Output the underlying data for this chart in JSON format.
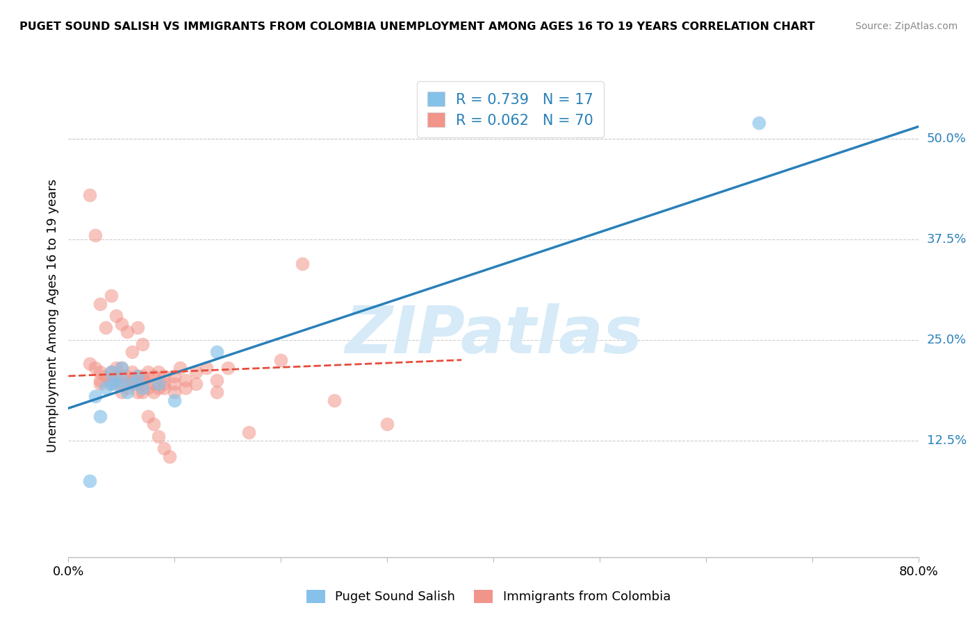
{
  "title": "PUGET SOUND SALISH VS IMMIGRANTS FROM COLOMBIA UNEMPLOYMENT AMONG AGES 16 TO 19 YEARS CORRELATION CHART",
  "source": "Source: ZipAtlas.com",
  "ylabel": "Unemployment Among Ages 16 to 19 years",
  "xlim": [
    0,
    0.8
  ],
  "ylim": [
    -0.02,
    0.58
  ],
  "ytick_right": [
    0.125,
    0.25,
    0.375,
    0.5
  ],
  "ytick_right_labels": [
    "12.5%",
    "25.0%",
    "37.5%",
    "50.0%"
  ],
  "blue_R": 0.739,
  "blue_N": 17,
  "pink_R": 0.062,
  "pink_N": 70,
  "blue_color": "#85c1e9",
  "pink_color": "#f1948a",
  "blue_line_color": "#2980b9",
  "pink_line_color": "#e74c3c",
  "blue_label_color": "#2980b9",
  "watermark": "ZIPatlas",
  "watermark_color": "#d6eaf8",
  "legend_label_blue": "Puget Sound Salish",
  "legend_label_pink": "Immigrants from Colombia",
  "blue_line_x0": 0.0,
  "blue_line_y0": 0.165,
  "blue_line_x1": 0.8,
  "blue_line_y1": 0.515,
  "pink_line_x0": 0.0,
  "pink_line_y0": 0.205,
  "pink_line_x1": 0.37,
  "pink_line_y1": 0.225,
  "blue_scatter_x": [
    0.02,
    0.025,
    0.03,
    0.035,
    0.04,
    0.04,
    0.045,
    0.05,
    0.05,
    0.055,
    0.06,
    0.065,
    0.07,
    0.085,
    0.1,
    0.14,
    0.65
  ],
  "blue_scatter_y": [
    0.075,
    0.18,
    0.155,
    0.19,
    0.195,
    0.21,
    0.195,
    0.2,
    0.215,
    0.185,
    0.195,
    0.205,
    0.19,
    0.195,
    0.175,
    0.235,
    0.52
  ],
  "pink_scatter_x": [
    0.02,
    0.025,
    0.03,
    0.03,
    0.03,
    0.035,
    0.04,
    0.04,
    0.04,
    0.045,
    0.045,
    0.05,
    0.05,
    0.05,
    0.05,
    0.055,
    0.055,
    0.06,
    0.06,
    0.06,
    0.065,
    0.065,
    0.065,
    0.07,
    0.07,
    0.07,
    0.07,
    0.075,
    0.075,
    0.08,
    0.08,
    0.08,
    0.085,
    0.085,
    0.09,
    0.09,
    0.09,
    0.1,
    0.1,
    0.1,
    0.105,
    0.11,
    0.11,
    0.12,
    0.12,
    0.13,
    0.14,
    0.14,
    0.15,
    0.17,
    0.2,
    0.22,
    0.25,
    0.3,
    0.02,
    0.025,
    0.03,
    0.035,
    0.04,
    0.045,
    0.05,
    0.055,
    0.06,
    0.065,
    0.07,
    0.075,
    0.08,
    0.085,
    0.09,
    0.095
  ],
  "pink_scatter_y": [
    0.22,
    0.215,
    0.21,
    0.2,
    0.195,
    0.205,
    0.195,
    0.21,
    0.2,
    0.2,
    0.215,
    0.195,
    0.205,
    0.185,
    0.215,
    0.19,
    0.205,
    0.195,
    0.2,
    0.21,
    0.185,
    0.205,
    0.195,
    0.2,
    0.185,
    0.205,
    0.195,
    0.19,
    0.21,
    0.195,
    0.185,
    0.205,
    0.19,
    0.21,
    0.19,
    0.205,
    0.195,
    0.195,
    0.185,
    0.205,
    0.215,
    0.19,
    0.2,
    0.21,
    0.195,
    0.215,
    0.2,
    0.185,
    0.215,
    0.135,
    0.225,
    0.345,
    0.175,
    0.145,
    0.43,
    0.38,
    0.295,
    0.265,
    0.305,
    0.28,
    0.27,
    0.26,
    0.235,
    0.265,
    0.245,
    0.155,
    0.145,
    0.13,
    0.115,
    0.105
  ]
}
